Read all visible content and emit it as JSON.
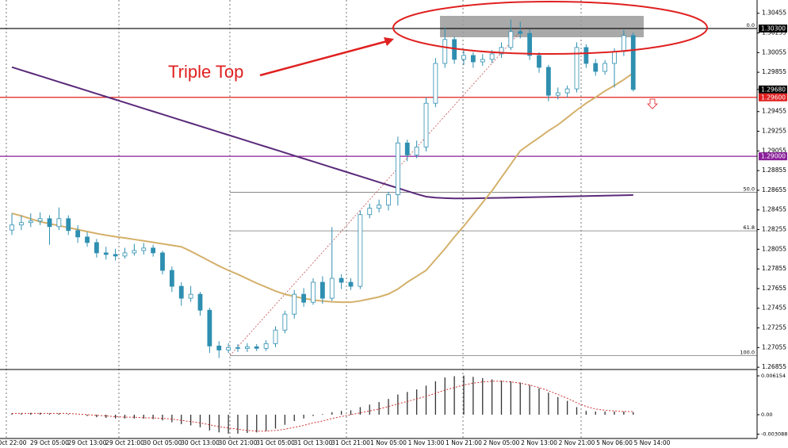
{
  "chart_data": [
    {
      "type": "candlestick",
      "annotation": "Triple Top",
      "categories": [
        "Oct 22:00",
        null,
        null,
        null,
        "29 Oct 05:00",
        null,
        null,
        null,
        "29 Oct 13:00",
        null,
        null,
        null,
        "29 Oct 21:00",
        null,
        null,
        null,
        "30 Oct 05:00",
        null,
        null,
        null,
        "30 Oct 13:00",
        null,
        null,
        null,
        "30 Oct 21:00",
        null,
        null,
        null,
        "31 Oct 05:00",
        null,
        null,
        null,
        "31 Oct 13:00",
        null,
        null,
        null,
        "31 Oct 21:00",
        null,
        null,
        null,
        "1 Nov 05:00",
        null,
        null,
        null,
        "1 Nov 13:00",
        null,
        null,
        null,
        "1 Nov 21:00",
        null,
        null,
        null,
        "2 Nov 05:00",
        null,
        null,
        null,
        "2 Nov 13:00",
        null,
        null,
        null,
        "2 Nov 21:00",
        null,
        null,
        null,
        "5 Nov 06:00",
        null,
        null,
        null,
        "5 Nov 14:00"
      ],
      "candles": [
        [
          1.2825,
          1.2842,
          1.282,
          1.28302
        ],
        [
          1.28302,
          1.284,
          1.2825,
          1.28326
        ],
        [
          1.28326,
          1.2842,
          1.2828,
          1.28342
        ],
        [
          1.28342,
          1.2843,
          1.283,
          1.28366
        ],
        [
          1.28366,
          1.284,
          1.281,
          1.28285
        ],
        [
          1.28285,
          1.2848,
          1.2825,
          1.28366
        ],
        [
          1.28366,
          1.284,
          1.282,
          1.28245
        ],
        [
          1.28245,
          1.283,
          1.2812,
          1.2818
        ],
        [
          1.2818,
          1.2823,
          1.2808,
          1.28123
        ],
        [
          1.28123,
          1.2816,
          1.2797,
          1.28018
        ],
        [
          1.28018,
          1.2808,
          1.2795,
          1.28002
        ],
        [
          1.28002,
          1.2806,
          1.2794,
          1.27986
        ],
        [
          1.27986,
          1.2807,
          1.2796,
          1.28018
        ],
        [
          1.28018,
          1.2811,
          1.2799,
          1.28042
        ],
        [
          1.28042,
          1.2812,
          1.28,
          1.28067
        ],
        [
          1.28067,
          1.281,
          1.2798,
          1.28018
        ],
        [
          1.28018,
          1.2804,
          1.278,
          1.2784
        ],
        [
          1.2784,
          1.2788,
          1.2762,
          1.27678
        ],
        [
          1.27678,
          1.2772,
          1.2748,
          1.27557
        ],
        [
          1.27557,
          1.2768,
          1.2752,
          1.27597
        ],
        [
          1.27597,
          1.2762,
          1.2738,
          1.27435
        ],
        [
          1.27435,
          1.2746,
          1.27,
          1.27071
        ],
        [
          1.27071,
          1.2712,
          1.26949,
          1.2703
        ],
        [
          1.2703,
          1.271,
          1.27,
          1.27055
        ],
        [
          1.27055,
          1.2709,
          1.2701,
          1.27047
        ],
        [
          1.27047,
          1.271,
          1.2701,
          1.27063
        ],
        [
          1.27063,
          1.2709,
          1.2702,
          1.27047
        ],
        [
          1.27047,
          1.2713,
          1.2702,
          1.27095
        ],
        [
          1.27095,
          1.2727,
          1.2706,
          1.27233
        ],
        [
          1.27233,
          1.2743,
          1.272,
          1.27395
        ],
        [
          1.27395,
          1.2764,
          1.2735,
          1.27597
        ],
        [
          1.27597,
          1.2766,
          1.2747,
          1.27516
        ],
        [
          1.27516,
          1.2776,
          1.2749,
          1.27719
        ],
        [
          1.27719,
          1.2778,
          1.275,
          1.27557
        ],
        [
          1.27557,
          1.2828,
          1.2753,
          1.27759
        ],
        [
          1.27759,
          1.278,
          1.2765,
          1.27719
        ],
        [
          1.27719,
          1.2776,
          1.2764,
          1.27678
        ],
        [
          1.27678,
          1.2845,
          1.2765,
          1.28407
        ],
        [
          1.28407,
          1.2852,
          1.2837,
          1.28472
        ],
        [
          1.28472,
          1.2856,
          1.2843,
          1.28504
        ],
        [
          1.28504,
          1.2864,
          1.2845,
          1.28609
        ],
        [
          1.28609,
          1.292,
          1.285,
          1.29136
        ],
        [
          1.29136,
          1.2917,
          1.2895,
          1.29014
        ],
        [
          1.29014,
          1.2916,
          1.2898,
          1.29095
        ],
        [
          1.29095,
          1.296,
          1.2905,
          1.2954
        ],
        [
          1.2954,
          1.3,
          1.295,
          1.29945
        ],
        [
          1.29945,
          1.3031,
          1.299,
          1.30188
        ],
        [
          1.30188,
          1.3022,
          1.2994,
          1.29986
        ],
        [
          1.29986,
          1.3008,
          1.2993,
          1.30026
        ],
        [
          1.30026,
          1.3006,
          1.299,
          1.29961
        ],
        [
          1.29961,
          1.3004,
          1.2992,
          1.29986
        ],
        [
          1.29986,
          1.3008,
          1.2995,
          1.30042
        ],
        [
          1.30042,
          1.3016,
          1.3,
          1.30107
        ],
        [
          1.30107,
          1.30391,
          1.3008,
          1.30269
        ],
        [
          1.30269,
          1.3037,
          1.302,
          1.3025
        ],
        [
          1.3025,
          1.3029,
          1.2998,
          1.30026
        ],
        [
          1.30026,
          1.3006,
          1.2985,
          1.29905
        ],
        [
          1.29905,
          1.2993,
          1.2956,
          1.29621
        ],
        [
          1.29621,
          1.297,
          1.2958,
          1.29646
        ],
        [
          1.29646,
          1.2972,
          1.296,
          1.29686
        ],
        [
          1.29686,
          1.3016,
          1.2965,
          1.30107
        ],
        [
          1.30107,
          1.3014,
          1.299,
          1.29945
        ],
        [
          1.29945,
          1.2999,
          1.2982,
          1.29864
        ],
        [
          1.29864,
          1.2998,
          1.2983,
          1.29945
        ],
        [
          1.29945,
          1.301,
          1.297,
          1.30067
        ],
        [
          1.30067,
          1.30285,
          1.3002,
          1.30229
        ],
        [
          1.30229,
          1.3026,
          1.2966,
          1.2968
        ],
        null,
        null
      ],
      "bull_color": "#ffffff",
      "bear_color": "#2e8fb0",
      "outline_color": "#2e8fb0",
      "lines": [
        {
          "color": "#5a2a7a",
          "values": [
            1.29907,
            1.29877,
            1.29847,
            1.29817,
            1.29787,
            1.29757,
            1.29727,
            1.29697,
            1.29667,
            1.29637,
            1.29607,
            1.29577,
            1.29547,
            1.29517,
            1.29487,
            1.29457,
            1.29427,
            1.29397,
            1.29367,
            1.29337,
            1.29307,
            1.29277,
            1.29247,
            1.29217,
            1.29187,
            1.29157,
            1.29127,
            1.29097,
            1.29067,
            1.29037,
            1.29007,
            1.28977,
            1.28947,
            1.28917,
            1.28887,
            1.28857,
            1.28827,
            1.28797,
            1.28767,
            1.28737,
            1.28707,
            1.28677,
            1.28647,
            1.28617,
            1.2859,
            1.2858,
            1.28575,
            1.28572,
            1.28572,
            1.28573,
            1.28575,
            1.28577,
            1.28578,
            1.2858,
            1.28582,
            1.28584,
            1.28586,
            1.28588,
            1.2859,
            1.28592,
            1.28594,
            1.28596,
            1.28598,
            1.286,
            1.28602,
            1.28604,
            1.28606,
            null,
            null
          ]
        },
        {
          "color": "#d4b06a",
          "values": [
            1.2842,
            1.28395,
            1.28365,
            1.28335,
            1.28315,
            1.28295,
            1.28275,
            1.28255,
            1.28235,
            1.28215,
            1.28198,
            1.28183,
            1.2817,
            1.28155,
            1.2814,
            1.28125,
            1.2811,
            1.28095,
            1.2808,
            1.28035,
            1.27985,
            1.27935,
            1.27885,
            1.2784,
            1.278,
            1.27755,
            1.2771,
            1.2767,
            1.2763,
            1.27597,
            1.27575,
            1.27555,
            1.2754,
            1.27528,
            1.2752,
            1.27516,
            1.27516,
            1.2753,
            1.2755,
            1.2757,
            1.276,
            1.2765,
            1.2772,
            1.2778,
            1.2784,
            1.2795,
            1.2806,
            1.2818,
            1.2829,
            1.2841,
            1.2853,
            1.2865,
            1.28785,
            1.2892,
            1.29055,
            1.29125,
            1.2919,
            1.2926,
            1.2932,
            1.29395,
            1.2947,
            1.2954,
            1.296,
            1.29665,
            1.2972,
            1.2978,
            1.29848,
            null,
            null
          ]
        }
      ],
      "ylim": [
        1.2684,
        1.3059
      ],
      "yticks": [
        1.30455,
        1.30255,
        1.30055,
        1.29855,
        1.29455,
        1.29255,
        1.29055,
        1.28855,
        1.28655,
        1.28455,
        1.28255,
        1.28055,
        1.27855,
        1.27655,
        1.27455,
        1.27255,
        1.27055,
        1.26855
      ],
      "levels": [
        {
          "value": 1.303,
          "label": "1.30300",
          "color": "#000000"
        },
        {
          "value": 1.2968,
          "label": "1.29680",
          "color": "#000000"
        },
        {
          "value": 1.296,
          "label": "1.29600",
          "color": "#e02020"
        },
        {
          "value": 1.29,
          "label": "1.29000",
          "color": "#8a1f9a"
        }
      ],
      "fib_levels": [
        {
          "value": 1.303,
          "label": "0.0"
        },
        {
          "value": 1.28635,
          "label": "50.0"
        },
        {
          "value": 1.28242,
          "label": "61.8"
        },
        {
          "value": 1.26974,
          "label": "100.0"
        }
      ]
    },
    {
      "type": "bar",
      "color": "#333333",
      "values": [
        0.0002,
        0.0002,
        0.0003,
        0.0003,
        0.0002,
        0.0002,
        0.0001,
        0,
        -0.0002,
        -0.0004,
        -0.0005,
        -0.0006,
        -0.0006,
        -0.0006,
        -0.0006,
        -0.0007,
        -0.0009,
        -0.0012,
        -0.0015,
        -0.0017,
        -0.002,
        -0.0025,
        -0.0028,
        -0.003,
        -0.003,
        -0.0029,
        -0.0028,
        -0.0026,
        -0.0022,
        -0.0016,
        -0.001,
        -0.0006,
        -0.0002,
        0.0001,
        0.0004,
        0.0006,
        0.0007,
        0.0012,
        0.0016,
        0.002,
        0.0025,
        0.0032,
        0.0036,
        0.004,
        0.0046,
        0.0053,
        0.0059,
        0.0061,
        0.0062,
        0.006,
        0.0058,
        0.0056,
        0.0054,
        0.0053,
        0.0051,
        0.0047,
        0.0042,
        0.0035,
        0.0028,
        0.0022,
        0.0012,
        0.0006,
        0.0005,
        0.0005,
        0.0005,
        0.0005,
        0.0004,
        null,
        null
      ],
      "signal": {
        "color": "#d03030",
        "values": [
          0.0002,
          0.0002,
          0.0002,
          0.0002,
          0.0002,
          0.0002,
          0.0002,
          0.0001,
          0,
          -0.0001,
          -0.0002,
          -0.0003,
          -0.0004,
          -0.0004,
          -0.0005,
          -0.0005,
          -0.0006,
          -0.0007,
          -0.0009,
          -0.0011,
          -0.0013,
          -0.0016,
          -0.0019,
          -0.0021,
          -0.0023,
          -0.0025,
          -0.0026,
          -0.0026,
          -0.0025,
          -0.0023,
          -0.002,
          -0.0017,
          -0.0013,
          -0.001,
          -0.0006,
          -0.0003,
          0,
          0.0003,
          0.0006,
          0.0009,
          0.0013,
          0.0017,
          0.0021,
          0.0025,
          0.0029,
          0.0034,
          0.0039,
          0.0043,
          0.0047,
          0.005,
          0.0052,
          0.0053,
          0.0053,
          0.0052,
          0.005,
          0.0047,
          0.0043,
          0.0038,
          0.0032,
          0.0026,
          0.0019,
          0.0013,
          0.0009,
          0.0007,
          0.0006,
          0.0005,
          0.0005,
          null,
          null
        ]
      },
      "ylim": [
        -0.00377,
        0.00691
      ],
      "yticks": [
        0.006154,
        {
          "value": 0,
          "label": "0.00"
        },
        -0.003088
      ]
    }
  ]
}
